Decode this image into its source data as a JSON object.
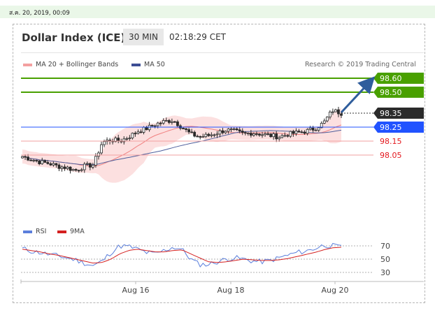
{
  "timestamp": "ส.ค. 20, 2019, 00:09",
  "header": {
    "title": "Dollar Index (ICE)",
    "timeframe": "30 MIN",
    "time": "02:18:29 CET"
  },
  "legend": {
    "ma20": "MA 20 + Bollinger Bands",
    "ma50": "MA 50",
    "rsi": "RSI",
    "ma9": "9MA"
  },
  "credit": "Research © 2019 Trading Central",
  "colors": {
    "green": "#49a000",
    "blue": "#2153ff",
    "dark": "#2b2b2b",
    "red": "#e3181e",
    "bollinger": "#fbd6d6",
    "ma20": "#f08080",
    "ma50": "#4e5f9c",
    "rsi_line": "#5b7fdc",
    "rsi_ma": "#d42020",
    "candle": "#2a2a2a",
    "arrow": "#2f5d9c"
  },
  "chart_data": {
    "type": "candlestick",
    "title": "Dollar Index (ICE)",
    "timeframe": "30 MIN",
    "price_range": [
      97.86,
      98.7
    ],
    "levels": [
      {
        "value": 98.6,
        "label": "98.60",
        "style": "green"
      },
      {
        "value": 98.5,
        "label": "98.50",
        "style": "green"
      },
      {
        "value": 98.35,
        "label": "98.35",
        "style": "dark"
      },
      {
        "value": 98.25,
        "label": "98.25",
        "style": "blue"
      },
      {
        "value": 98.15,
        "label": "98.15",
        "style": "red"
      },
      {
        "value": 98.05,
        "label": "98.05",
        "style": "red"
      }
    ],
    "arrow": {
      "from": 98.35,
      "to": 98.55
    },
    "close_path": [
      98.04,
      98.02,
      98.0,
      97.99,
      97.97,
      97.96,
      97.94,
      97.97,
      97.98,
      98.14,
      98.16,
      98.15,
      98.18,
      98.22,
      98.24,
      98.27,
      98.29,
      98.3,
      98.25,
      98.2,
      98.18,
      98.19,
      98.21,
      98.23,
      98.22,
      98.2,
      98.21,
      98.2,
      98.19,
      98.18,
      98.2,
      98.21,
      98.22,
      98.24,
      98.28,
      98.37,
      98.35
    ],
    "x_ticks": [
      "Aug 16",
      "Aug 18",
      "Aug 20"
    ],
    "rsi": {
      "levels": [
        70,
        50,
        30
      ],
      "range": [
        20,
        80
      ],
      "rsi_values": [
        66,
        62,
        60,
        57,
        55,
        52,
        49,
        44,
        40,
        47,
        60,
        70,
        69,
        65,
        60,
        58,
        63,
        68,
        65,
        50,
        42,
        42,
        46,
        50,
        52,
        50,
        47,
        46,
        48,
        52,
        56,
        60,
        62,
        66,
        71,
        70,
        68
      ],
      "ma_values": [
        65,
        63,
        61,
        58,
        56,
        53,
        50,
        47,
        44,
        45,
        50,
        58,
        63,
        65,
        63,
        61,
        61,
        63,
        64,
        58,
        52,
        46,
        45,
        46,
        48,
        50,
        49,
        48,
        48,
        49,
        51,
        54,
        57,
        60,
        64,
        67,
        68
      ]
    }
  }
}
